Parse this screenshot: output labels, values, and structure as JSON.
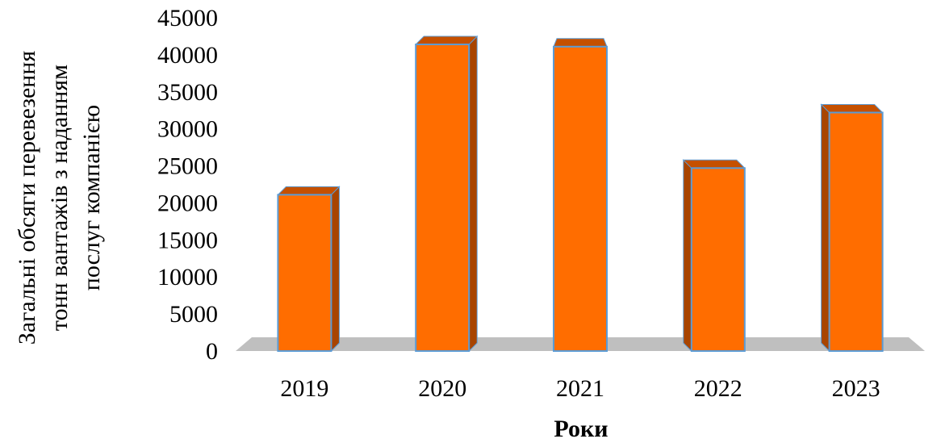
{
  "chart_data": {
    "type": "bar",
    "categories": [
      "2019",
      "2020",
      "2021",
      "2022",
      "2023"
    ],
    "values": [
      21100,
      41400,
      41100,
      24700,
      32200
    ],
    "xlabel": "Роки",
    "ylabel_lines": [
      "Загальні обсяги перевезення",
      "тонн вантажів з наданням",
      "послуг  компанією"
    ],
    "ylim": [
      0,
      45000
    ],
    "yticks": [
      0,
      5000,
      10000,
      15000,
      20000,
      25000,
      30000,
      35000,
      40000,
      45000
    ],
    "grid": false,
    "legend": "none",
    "colors": {
      "bar_front": "#ff6d00",
      "bar_side": "#a84400",
      "bar_top": "#c55000",
      "bar_outline": "#5b9bd5",
      "floor": "#bfbfbf"
    }
  }
}
